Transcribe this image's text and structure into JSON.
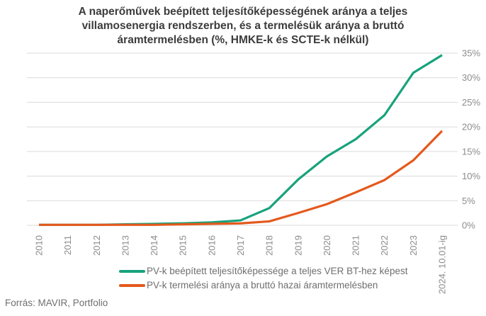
{
  "title": "A naperőművek beépített teljesítőképességének aránya a teljes villamosenergia rendszerben, és a termelésük aránya a bruttó áramtermelésben (%, HMKE-k és SCTE-k nélkül)",
  "footer": {
    "source": "Forrás: MAVIR, Portfolio"
  },
  "colors": {
    "series_capacity": "#17a27b",
    "series_generation": "#e4591c",
    "gridline": "#dadada",
    "axis_text": "#8c8c8c",
    "title_text": "#3c3c3c",
    "legend_text": "#6f6f6f",
    "background": "#ffffff"
  },
  "chart_data": {
    "type": "line",
    "title": "A naperőművek beépített teljesítőképességének aránya a teljes villamosenergia rendszerben, és a termelésük aránya a bruttó áramtermelésben (%, HMKE-k és SCTE-k nélkül)",
    "categories": [
      "2010",
      "2011",
      "2012",
      "2013",
      "2014",
      "2015",
      "2016",
      "2017",
      "2018",
      "2019",
      "2020",
      "2021",
      "2022",
      "2023",
      "2024. 10.01-ig"
    ],
    "series": [
      {
        "name": "PV-k beépített teljesítőképessége a teljes VER BT-hez képest",
        "color": "#17a27b",
        "values": [
          0.1,
          0.1,
          0.1,
          0.2,
          0.3,
          0.4,
          0.6,
          1.0,
          3.5,
          9.3,
          14.0,
          17.5,
          22.4,
          31.0,
          34.6
        ]
      },
      {
        "name": "PV-k termelési aránya a bruttó hazai áramtermelésben",
        "color": "#e4591c",
        "values": [
          0.1,
          0.1,
          0.1,
          0.1,
          0.1,
          0.2,
          0.3,
          0.4,
          0.8,
          2.5,
          4.3,
          6.7,
          9.2,
          13.2,
          19.2
        ]
      }
    ],
    "xlabel": "",
    "ylabel": "",
    "y_ticks": [
      0,
      5,
      10,
      15,
      20,
      25,
      30,
      35
    ],
    "y_tick_suffix": "%",
    "ylim": [
      0,
      35
    ],
    "grid": "horizontal",
    "y_axis_position": "right",
    "x_tick_rotation": -90,
    "legend_position": "bottom-left"
  }
}
